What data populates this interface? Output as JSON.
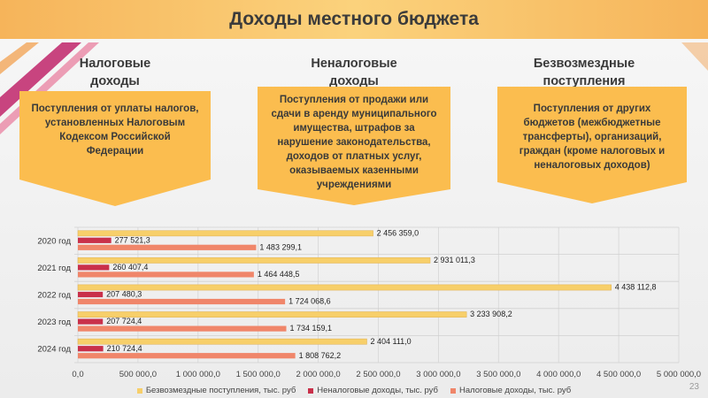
{
  "slide": {
    "title": "Доходы местного бюджета",
    "page_number": "23"
  },
  "columns": [
    {
      "title_line1": "Налоговые",
      "title_line2": "доходы",
      "text_lines": [
        "Поступления от уплаты налогов,",
        "установленных Налоговым",
        "Кодексом Российской",
        "Федерации"
      ]
    },
    {
      "title_line1": "Неналоговые",
      "title_line2": "доходы",
      "text_lines": [
        "Поступления от продажи или",
        "сдачи в аренду муниципального",
        "имущества, штрафов за",
        "нарушение законодательства,",
        "доходов от платных услуг,",
        "оказываемых казенными",
        "учреждениями"
      ]
    },
    {
      "title_line1": "Безвозмездные",
      "title_line2": "поступления",
      "text_lines": [
        "Поступления от других",
        "бюджетов (межбюджетные",
        "трансферты), организаций,",
        "граждан (кроме налоговых и",
        "неналоговых доходов)"
      ]
    }
  ],
  "chart_data": {
    "type": "bar",
    "orientation": "horizontal",
    "categories": [
      "2020 год",
      "2021 год",
      "2022 год",
      "2023 год",
      "2024 год"
    ],
    "series": [
      {
        "name": "Безвозмездные поступления, тыс. руб",
        "color": "#f7cf6a",
        "values": [
          2456359.0,
          2931011.3,
          4438112.8,
          3233908.2,
          2404111.0
        ],
        "labels": [
          "2 456 359,0",
          "2 931 011,3",
          "4 438 112,8",
          "3 233 908,2",
          "2 404 111,0"
        ]
      },
      {
        "name": "Неналоговые доходы, тыс. руб",
        "color": "#c9304a",
        "values": [
          277521.3,
          260407.4,
          207480.3,
          207724.4,
          210724.4
        ],
        "labels": [
          "277 521,3",
          "260 407,4",
          "207 480,3",
          "207 724,4",
          "210 724,4"
        ]
      },
      {
        "name": "Налоговые доходы, тыс. руб",
        "color": "#f0866a",
        "values": [
          1483299.1,
          1464448.5,
          1724068.6,
          1734159.1,
          1808762.2
        ],
        "labels": [
          "1 483 299,1",
          "1 464 448,5",
          "1 724 068,6",
          "1 734 159,1",
          "1 808 762,2"
        ]
      }
    ],
    "xlim": [
      0,
      5000000
    ],
    "xticks": [
      0,
      500000,
      1000000,
      1500000,
      2000000,
      2500000,
      3000000,
      3500000,
      4000000,
      4500000,
      5000000
    ],
    "xtick_labels": [
      "0,0",
      "500 000,0",
      "1 000 000,0",
      "1 500 000,0",
      "2 000 000,0",
      "2 500 000,0",
      "3 000 000,0",
      "3 500 000,0",
      "4 000 000,0",
      "4 500 000,0",
      "5 000 000,0"
    ],
    "grid": true,
    "legend_position": "bottom"
  },
  "colors": {
    "header": "#f6b45a",
    "card": "#fbbd4f",
    "decor_magenta": "#c0246a"
  }
}
